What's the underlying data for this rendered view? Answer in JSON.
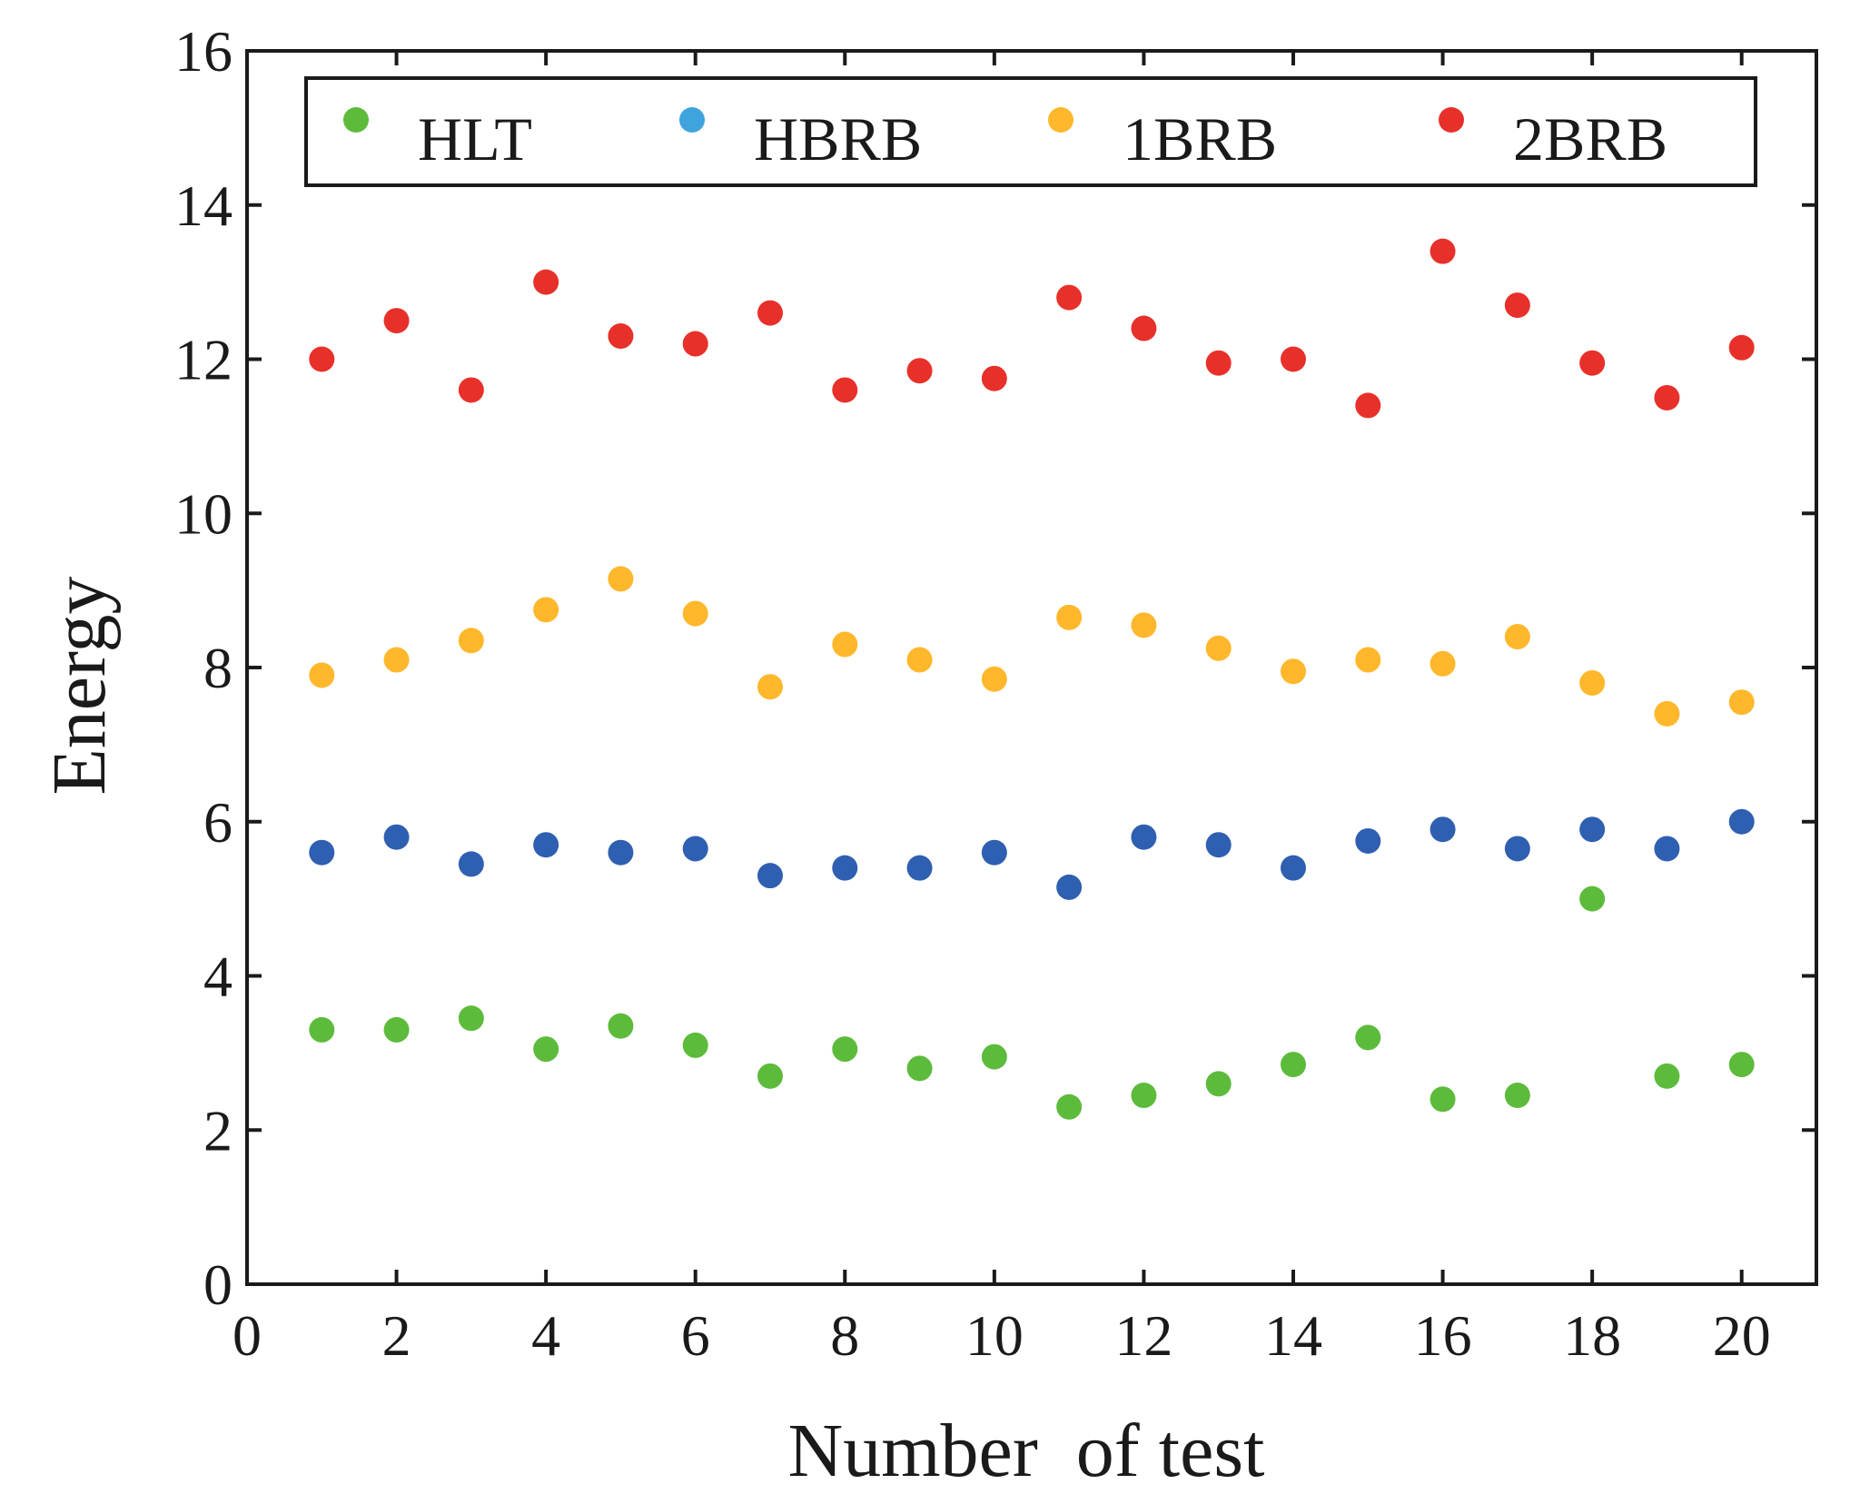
{
  "chart_data": {
    "type": "scatter",
    "title": "",
    "xlabel": "Number  of test",
    "ylabel": "Energy",
    "xlim": [
      0,
      21
    ],
    "ylim": [
      0,
      16
    ],
    "xticks": [
      0,
      2,
      4,
      6,
      8,
      10,
      12,
      14,
      16,
      18,
      20
    ],
    "yticks": [
      0,
      2,
      4,
      6,
      8,
      10,
      12,
      14,
      16
    ],
    "grid": false,
    "legend": "top (inside plot, single row)",
    "x": [
      1,
      2,
      3,
      4,
      5,
      6,
      7,
      8,
      9,
      10,
      11,
      12,
      13,
      14,
      15,
      16,
      17,
      18,
      19,
      20
    ],
    "series": [
      {
        "name": "HLT",
        "color": "#5dbb3b",
        "values": [
          3.3,
          3.3,
          3.45,
          3.05,
          3.35,
          3.1,
          2.7,
          3.05,
          2.8,
          2.95,
          2.3,
          2.45,
          2.6,
          2.85,
          3.2,
          2.4,
          2.45,
          5.0,
          2.7,
          2.85
        ]
      },
      {
        "name": "HBRB",
        "color": "#2f5fb0",
        "legend_color": "#3fa3dd",
        "values": [
          5.6,
          5.8,
          5.45,
          5.7,
          5.6,
          5.65,
          5.3,
          5.4,
          5.4,
          5.6,
          5.15,
          5.8,
          5.7,
          5.4,
          5.75,
          5.9,
          5.65,
          5.9,
          5.65,
          6.0
        ]
      },
      {
        "name": "1BRB",
        "color": "#ffb72b",
        "values": [
          7.9,
          8.1,
          8.35,
          8.75,
          9.15,
          8.7,
          7.75,
          8.3,
          8.1,
          7.85,
          8.65,
          8.55,
          8.25,
          7.95,
          8.1,
          8.05,
          8.4,
          7.8,
          7.4,
          7.55
        ]
      },
      {
        "name": "2BRB",
        "color": "#e8302a",
        "values": [
          12.0,
          12.5,
          11.6,
          13.0,
          12.3,
          12.2,
          12.6,
          11.6,
          11.85,
          11.75,
          12.8,
          12.4,
          11.95,
          12.0,
          11.4,
          13.4,
          12.7,
          11.95,
          11.5,
          12.15
        ]
      }
    ]
  }
}
